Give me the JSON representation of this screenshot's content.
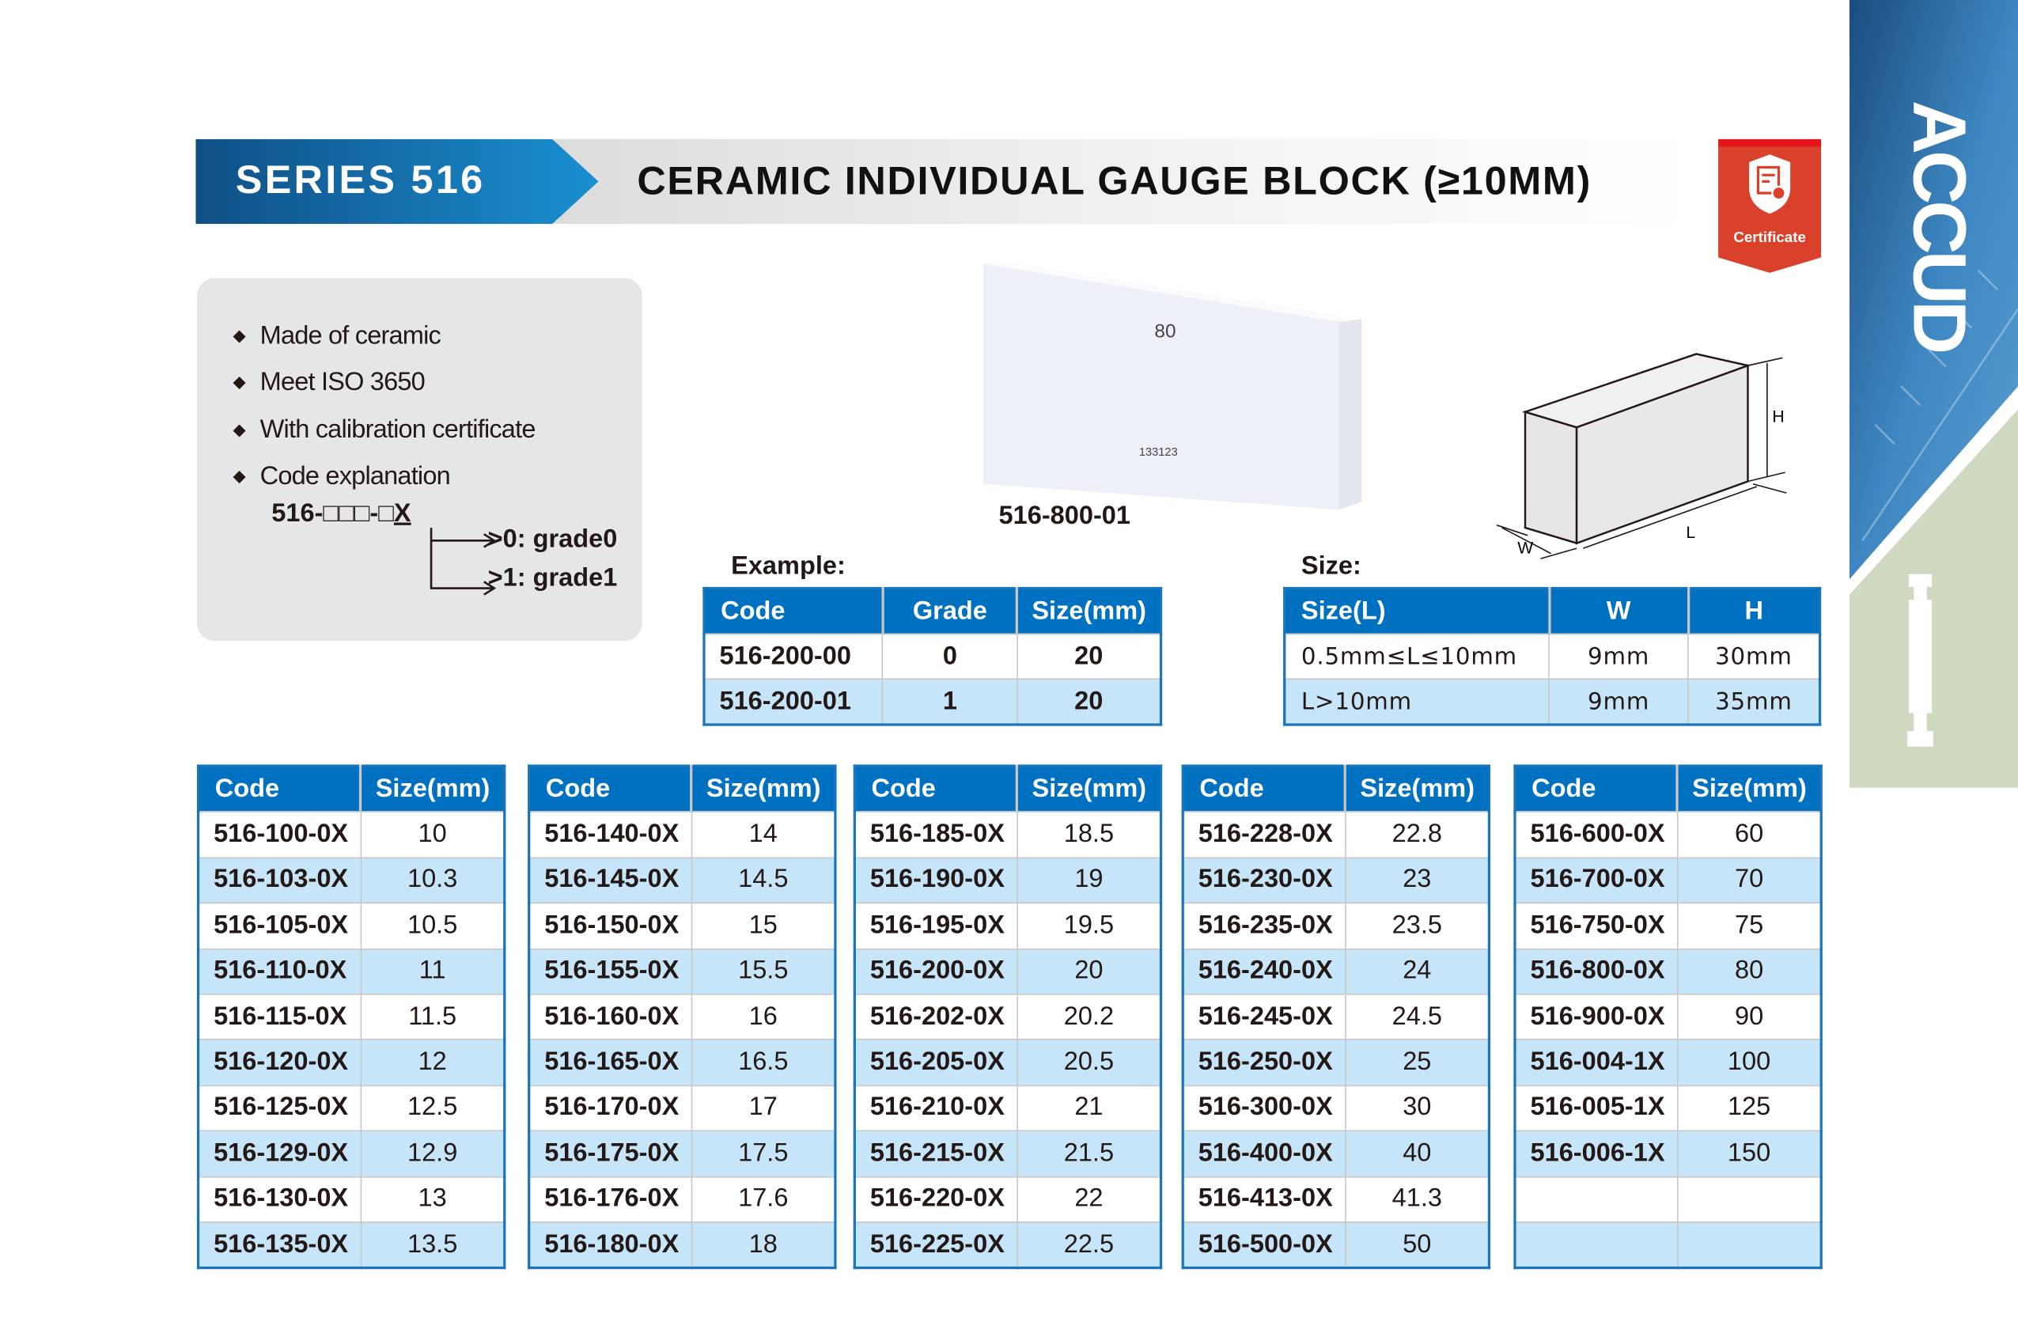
{
  "header": {
    "series": "SERIES 516",
    "title": "CERAMIC INDIVIDUAL GAUGE BLOCK (≥10MM)",
    "series_color": "#0f6cb0"
  },
  "badge": {
    "label": "Certificate",
    "icon": "certificate-icon",
    "color": "#d9412b"
  },
  "brand": {
    "logo_text": "ACCUD",
    "panel_color": "#2e78b5",
    "accent_color": "#cfd9bf"
  },
  "features": {
    "items": [
      "Made of ceramic",
      "Meet ISO 3650",
      "With calibration certificate",
      "Code explanation"
    ],
    "code_pattern": "516-□□□-□",
    "code_suffix": "X",
    "grades": [
      ">0: grade0",
      ">1: grade1"
    ]
  },
  "product": {
    "label": "516-800-01",
    "engraving_size": "80",
    "engraving_serial": "133123"
  },
  "diagram": {
    "labels": {
      "h": "H",
      "w": "W",
      "l": "L"
    }
  },
  "example": {
    "label": "Example:",
    "columns": [
      "Code",
      "Grade",
      "Size(mm)"
    ],
    "rows": [
      [
        "516-200-00",
        "0",
        "20"
      ],
      [
        "516-200-01",
        "1",
        "20"
      ]
    ]
  },
  "size": {
    "label": "Size:",
    "columns": [
      "Size(L)",
      "W",
      "H"
    ],
    "rows": [
      [
        "0.5mm≤L≤10mm",
        "9mm",
        "30mm"
      ],
      [
        "L>10mm",
        "9mm",
        "35mm"
      ]
    ]
  },
  "catalog": {
    "columns": [
      "Code",
      "Size(mm)"
    ],
    "tables": [
      [
        [
          "516-100-0X",
          "10"
        ],
        [
          "516-103-0X",
          "10.3"
        ],
        [
          "516-105-0X",
          "10.5"
        ],
        [
          "516-110-0X",
          "11"
        ],
        [
          "516-115-0X",
          "11.5"
        ],
        [
          "516-120-0X",
          "12"
        ],
        [
          "516-125-0X",
          "12.5"
        ],
        [
          "516-129-0X",
          "12.9"
        ],
        [
          "516-130-0X",
          "13"
        ],
        [
          "516-135-0X",
          "13.5"
        ]
      ],
      [
        [
          "516-140-0X",
          "14"
        ],
        [
          "516-145-0X",
          "14.5"
        ],
        [
          "516-150-0X",
          "15"
        ],
        [
          "516-155-0X",
          "15.5"
        ],
        [
          "516-160-0X",
          "16"
        ],
        [
          "516-165-0X",
          "16.5"
        ],
        [
          "516-170-0X",
          "17"
        ],
        [
          "516-175-0X",
          "17.5"
        ],
        [
          "516-176-0X",
          "17.6"
        ],
        [
          "516-180-0X",
          "18"
        ]
      ],
      [
        [
          "516-185-0X",
          "18.5"
        ],
        [
          "516-190-0X",
          "19"
        ],
        [
          "516-195-0X",
          "19.5"
        ],
        [
          "516-200-0X",
          "20"
        ],
        [
          "516-202-0X",
          "20.2"
        ],
        [
          "516-205-0X",
          "20.5"
        ],
        [
          "516-210-0X",
          "21"
        ],
        [
          "516-215-0X",
          "21.5"
        ],
        [
          "516-220-0X",
          "22"
        ],
        [
          "516-225-0X",
          "22.5"
        ]
      ],
      [
        [
          "516-228-0X",
          "22.8"
        ],
        [
          "516-230-0X",
          "23"
        ],
        [
          "516-235-0X",
          "23.5"
        ],
        [
          "516-240-0X",
          "24"
        ],
        [
          "516-245-0X",
          "24.5"
        ],
        [
          "516-250-0X",
          "25"
        ],
        [
          "516-300-0X",
          "30"
        ],
        [
          "516-400-0X",
          "40"
        ],
        [
          "516-413-0X",
          "41.3"
        ],
        [
          "516-500-0X",
          "50"
        ]
      ],
      [
        [
          "516-600-0X",
          "60"
        ],
        [
          "516-700-0X",
          "70"
        ],
        [
          "516-750-0X",
          "75"
        ],
        [
          "516-800-0X",
          "80"
        ],
        [
          "516-900-0X",
          "90"
        ],
        [
          "516-004-1X",
          "100"
        ],
        [
          "516-005-1X",
          "125"
        ],
        [
          "516-006-1X",
          "150"
        ],
        [
          "",
          ""
        ],
        [
          "",
          ""
        ]
      ]
    ]
  },
  "colors": {
    "table_header": "#0070c0",
    "row_alt": "#c7e5f8",
    "table_border": "#1a75bb"
  }
}
